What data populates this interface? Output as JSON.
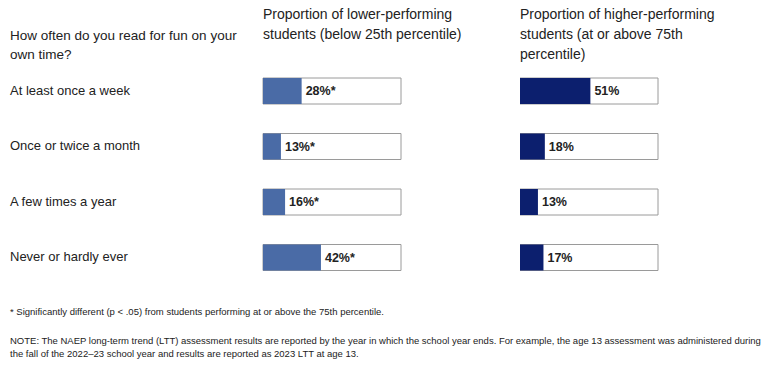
{
  "chart_data": [
    {
      "type": "bar",
      "orientation": "horizontal",
      "title": "Proportion of lower-performing students (below 25th percentile)",
      "y_label": "How often do you read for fun on your own time?",
      "categories": [
        "At least once a week",
        "Once or twice a month",
        "A few times a year",
        "Never or hardly ever"
      ],
      "values": [
        28,
        13,
        16,
        42
      ],
      "value_labels": [
        "28%*",
        "13%*",
        "16%*",
        "42%*"
      ],
      "data_labels": true,
      "color": "#4a6ba6",
      "xlim": [
        0,
        100
      ],
      "tick_labels": "y"
    },
    {
      "type": "bar",
      "orientation": "horizontal",
      "title": "Proportion of higher-performing students (at or above 75th percentile)",
      "categories": [
        "At least once a week",
        "Once or twice a month",
        "A few times a year",
        "Never or hardly ever"
      ],
      "values": [
        51,
        18,
        13,
        17
      ],
      "value_labels": [
        "51%",
        "18%",
        "13%",
        "17%"
      ],
      "data_labels": true,
      "color": "#0c1f6e",
      "xlim": [
        0,
        100
      ],
      "tick_labels": false
    }
  ],
  "notes": [
    "* Significantly different (p < .05) from students performing at or above the 75th percentile.",
    "NOTE: The NAEP long-term trend (LTT) assessment results are reported by the year in which the school year ends. For example, the age 13 assessment was administered during the fall of the 2022–23 school year and results are reported as 2023 LTT at age 13."
  ]
}
